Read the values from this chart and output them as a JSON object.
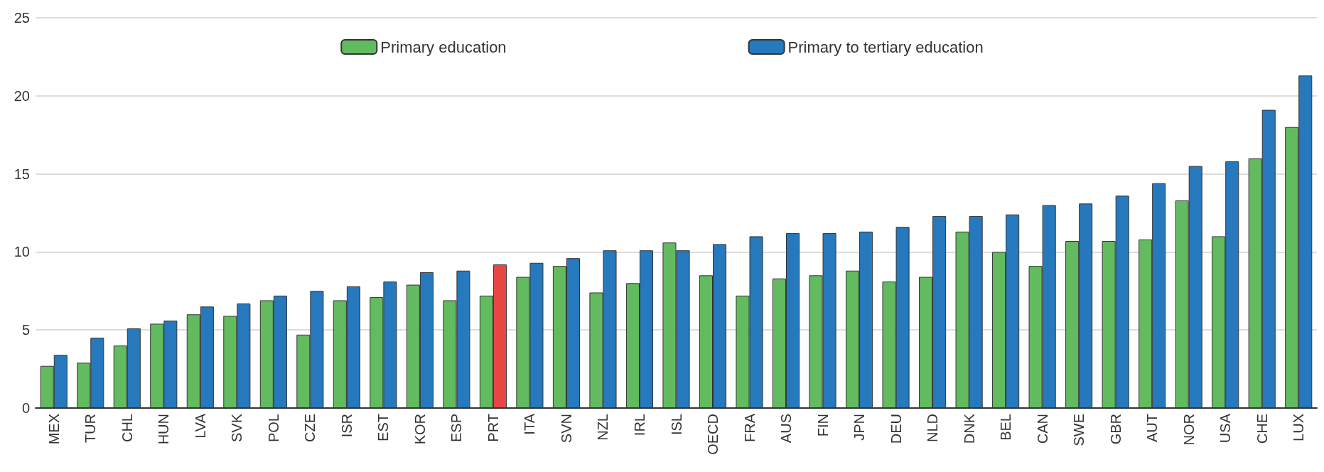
{
  "chart_data": {
    "type": "bar",
    "categories": [
      "MEX",
      "TUR",
      "CHL",
      "HUN",
      "LVA",
      "SVK",
      "POL",
      "CZE",
      "ISR",
      "EST",
      "KOR",
      "ESP",
      "PRT",
      "ITA",
      "SVN",
      "NZL",
      "IRL",
      "ISL",
      "OECD",
      "FRA",
      "AUS",
      "FIN",
      "JPN",
      "DEU",
      "NLD",
      "DNK",
      "BEL",
      "CAN",
      "SWE",
      "GBR",
      "AUT",
      "NOR",
      "USA",
      "CHE",
      "LUX"
    ],
    "series": [
      {
        "name": "Primary education",
        "color": "#62bb5f",
        "values": [
          2.7,
          2.9,
          4.0,
          5.4,
          6.0,
          5.9,
          6.9,
          4.7,
          6.9,
          7.1,
          7.9,
          6.9,
          7.2,
          8.4,
          9.1,
          7.4,
          8.0,
          10.6,
          8.5,
          7.2,
          8.3,
          8.5,
          8.8,
          8.1,
          8.4,
          11.3,
          10.0,
          9.1,
          10.7,
          10.7,
          10.8,
          13.3,
          11.0,
          16.0,
          18.0
        ]
      },
      {
        "name": "Primary to tertiary education",
        "color": "#2679bd",
        "colors": [
          "#2679bd",
          "#2679bd",
          "#2679bd",
          "#2679bd",
          "#2679bd",
          "#2679bd",
          "#2679bd",
          "#2679bd",
          "#2679bd",
          "#2679bd",
          "#2679bd",
          "#2679bd",
          "#e84545",
          "#2679bd",
          "#2679bd",
          "#2679bd",
          "#2679bd",
          "#2679bd",
          "#2679bd",
          "#2679bd",
          "#2679bd",
          "#2679bd",
          "#2679bd",
          "#2679bd",
          "#2679bd",
          "#2679bd",
          "#2679bd",
          "#2679bd",
          "#2679bd",
          "#2679bd",
          "#2679bd",
          "#2679bd",
          "#2679bd",
          "#2679bd",
          "#2679bd"
        ],
        "values": [
          3.4,
          4.5,
          5.1,
          5.6,
          6.5,
          6.7,
          7.2,
          7.5,
          7.8,
          8.1,
          8.7,
          8.8,
          9.2,
          9.3,
          9.6,
          10.1,
          10.1,
          10.1,
          10.5,
          11.0,
          11.2,
          11.2,
          11.3,
          11.6,
          12.3,
          12.3,
          12.4,
          13.0,
          13.1,
          13.6,
          14.4,
          15.5,
          15.8,
          19.1,
          21.3
        ]
      }
    ],
    "ylim": [
      0,
      25
    ],
    "yticks": [
      0,
      5,
      10,
      15,
      20,
      25
    ],
    "grid": "y",
    "legend": "top"
  }
}
